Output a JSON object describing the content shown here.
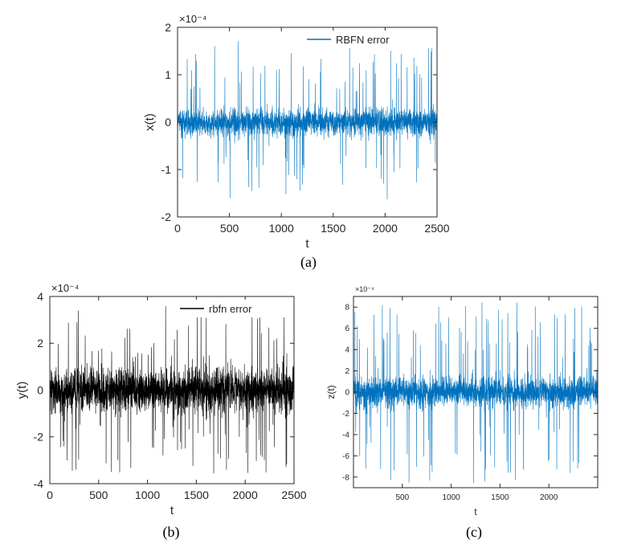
{
  "chart_data": [
    {
      "type": "line",
      "caption": "(a)",
      "xlabel": "t",
      "ylabel": "x(t)",
      "exponent": "×10⁻⁴",
      "xlim": [
        0,
        2500
      ],
      "ylim": [
        -2,
        2
      ],
      "xticks": [
        "0",
        "500",
        "1000",
        "1500",
        "2000",
        "2500"
      ],
      "yticks": [
        "-2",
        "-1",
        "0",
        "1",
        "2"
      ],
      "grid": false,
      "legend_position": "top-right",
      "series": [
        {
          "name": "RBFN error",
          "color": "#0072BD",
          "n_points": 2500,
          "amplitude_band": 0.3,
          "peak_abs": 1.8
        }
      ]
    },
    {
      "type": "line",
      "caption": "(b)",
      "xlabel": "t",
      "ylabel": "y(t)",
      "exponent": "×10⁻⁴",
      "xlim": [
        0,
        2500
      ],
      "ylim": [
        -4,
        4
      ],
      "xticks": [
        "0",
        "500",
        "1000",
        "1500",
        "2000",
        "2500"
      ],
      "yticks": [
        "-4",
        "-2",
        "0",
        "2",
        "4"
      ],
      "grid": false,
      "legend_position": "top-right",
      "series": [
        {
          "name": "rbfn error",
          "color": "#000000",
          "n_points": 2500,
          "amplitude_band": 1.0,
          "peak_abs": 3.8
        }
      ]
    },
    {
      "type": "line",
      "caption": "(c)",
      "xlabel": "t",
      "ylabel": "z(t)",
      "exponent": "×10⁻⁴",
      "xlim": [
        0,
        2500
      ],
      "ylim": [
        -9,
        9
      ],
      "xticks": [
        "500",
        "1000",
        "1500",
        "2000"
      ],
      "yticks": [
        "-8",
        "-6",
        "-4",
        "-2",
        "0",
        "2",
        "4",
        "6",
        "8"
      ],
      "grid": false,
      "series": [
        {
          "color": "#0072BD",
          "n_points": 2500,
          "amplitude_band": 1.5,
          "peak_abs": 9.0
        }
      ]
    }
  ]
}
